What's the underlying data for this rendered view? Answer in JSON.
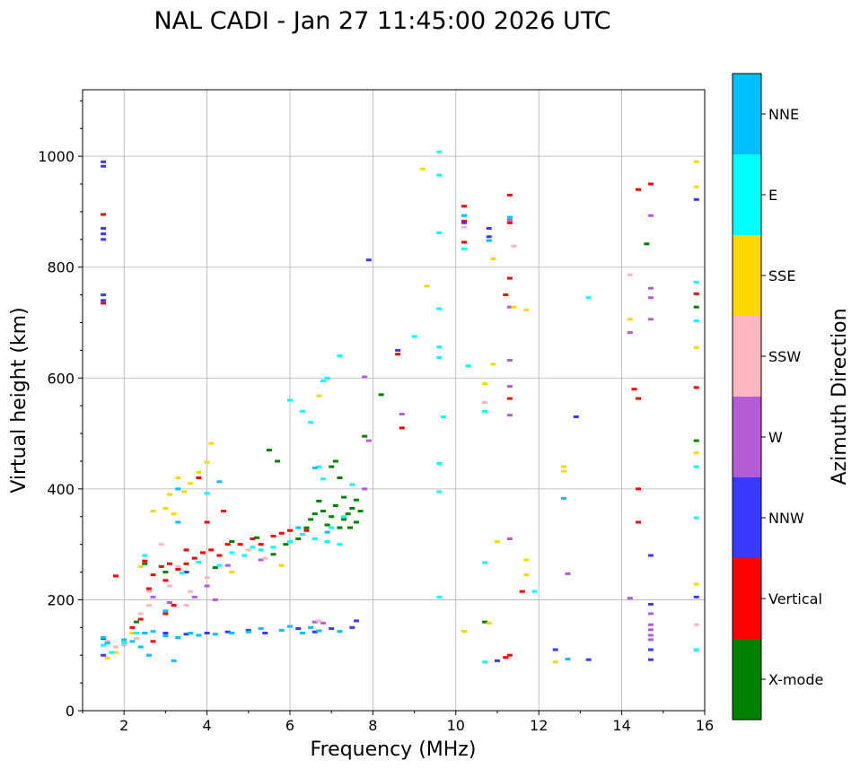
{
  "chart_data": {
    "type": "scatter",
    "title": "NAL CADI - Jan 27 11:45:00 2026 UTC",
    "xlabel": "Frequency (MHz)",
    "ylabel": "Virtual height (km)",
    "xlim": [
      1,
      16
    ],
    "ylim": [
      0,
      1120
    ],
    "xticks": [
      2,
      4,
      6,
      8,
      10,
      12,
      14,
      16
    ],
    "xtick_labels": [
      "2",
      "4",
      "6",
      "8",
      "10",
      "12",
      "14",
      "16"
    ],
    "yticks": [
      0,
      200,
      400,
      600,
      800,
      1000
    ],
    "ytick_labels": [
      "0",
      "200",
      "400",
      "600",
      "800",
      "1000"
    ],
    "grid": true,
    "colorbar": {
      "title": "Azimuth Direction",
      "categories": [
        {
          "label": "X-mode",
          "color": "#008000"
        },
        {
          "label": "Vertical",
          "color": "#ff0000"
        },
        {
          "label": "NNW",
          "color": "#3a3aff"
        },
        {
          "label": "W",
          "color": "#b35cd6"
        },
        {
          "label": "SSW",
          "color": "#ffb6c1"
        },
        {
          "label": "SSE",
          "color": "#ffd700"
        },
        {
          "label": "E",
          "color": "#00ffff"
        },
        {
          "label": "NNE",
          "color": "#00bfff"
        }
      ]
    },
    "series": [
      {
        "name": "X-mode",
        "points": [
          [
            2.3,
            160
          ],
          [
            2.5,
            265
          ],
          [
            3.0,
            250
          ],
          [
            4.2,
            258
          ],
          [
            4.6,
            305
          ],
          [
            5.2,
            312
          ],
          [
            5.6,
            282
          ],
          [
            5.9,
            300
          ],
          [
            6.2,
            310
          ],
          [
            6.4,
            330
          ],
          [
            6.5,
            345
          ],
          [
            6.6,
            355
          ],
          [
            6.8,
            360
          ],
          [
            6.9,
            335
          ],
          [
            7.0,
            350
          ],
          [
            7.1,
            370
          ],
          [
            7.2,
            330
          ],
          [
            7.3,
            345
          ],
          [
            7.4,
            355
          ],
          [
            7.5,
            365
          ],
          [
            7.6,
            380
          ],
          [
            7.7,
            360
          ],
          [
            7.0,
            440
          ],
          [
            7.1,
            450
          ],
          [
            7.2,
            420
          ],
          [
            5.7,
            450
          ],
          [
            5.5,
            470
          ],
          [
            7.8,
            495
          ],
          [
            8.2,
            570
          ],
          [
            10.7,
            160
          ],
          [
            14.6,
            842
          ],
          [
            15.8,
            728
          ],
          [
            15.8,
            487
          ],
          [
            6.7,
            378
          ],
          [
            7.3,
            385
          ],
          [
            7.6,
            340
          ],
          [
            7.45,
            330
          ]
        ]
      },
      {
        "name": "Vertical",
        "points": [
          [
            1.5,
            735
          ],
          [
            1.5,
            895
          ],
          [
            1.8,
            243
          ],
          [
            2.2,
            150
          ],
          [
            2.4,
            165
          ],
          [
            2.5,
            270
          ],
          [
            2.7,
            245
          ],
          [
            2.9,
            260
          ],
          [
            3.0,
            235
          ],
          [
            3.1,
            265
          ],
          [
            3.3,
            255
          ],
          [
            3.5,
            265
          ],
          [
            3.7,
            275
          ],
          [
            3.9,
            285
          ],
          [
            4.1,
            290
          ],
          [
            4.3,
            280
          ],
          [
            4.5,
            300
          ],
          [
            4.8,
            300
          ],
          [
            5.1,
            310
          ],
          [
            5.3,
            300
          ],
          [
            5.6,
            315
          ],
          [
            5.8,
            320
          ],
          [
            6.0,
            325
          ],
          [
            6.4,
            325
          ],
          [
            3.2,
            190
          ],
          [
            2.7,
            125
          ],
          [
            3.0,
            175
          ],
          [
            3.5,
            290
          ],
          [
            4.0,
            340
          ],
          [
            4.4,
            360
          ],
          [
            2.6,
            220
          ],
          [
            3.8,
            420
          ],
          [
            8.7,
            510
          ],
          [
            8.6,
            643
          ],
          [
            10.2,
            910
          ],
          [
            10.2,
            845
          ],
          [
            10.2,
            883
          ],
          [
            11.2,
            750
          ],
          [
            11.3,
            780
          ],
          [
            11.3,
            880
          ],
          [
            11.3,
            930
          ],
          [
            11.3,
            563
          ],
          [
            11.6,
            215
          ],
          [
            11.3,
            100
          ],
          [
            11.2,
            96
          ],
          [
            14.3,
            580
          ],
          [
            14.4,
            940
          ],
          [
            14.7,
            950
          ],
          [
            14.4,
            563
          ],
          [
            14.4,
            400
          ],
          [
            14.4,
            340
          ],
          [
            15.8,
            752
          ],
          [
            15.8,
            583
          ]
        ]
      },
      {
        "name": "NNW",
        "points": [
          [
            1.5,
            990
          ],
          [
            1.5,
            982
          ],
          [
            1.5,
            870
          ],
          [
            1.5,
            860
          ],
          [
            1.5,
            850
          ],
          [
            1.5,
            750
          ],
          [
            1.5,
            740
          ],
          [
            1.5,
            130
          ],
          [
            1.5,
            100
          ],
          [
            2.5,
            140
          ],
          [
            3.0,
            140
          ],
          [
            3.5,
            138
          ],
          [
            4.0,
            140
          ],
          [
            4.5,
            142
          ],
          [
            5.0,
            145
          ],
          [
            5.4,
            140
          ],
          [
            6.2,
            148
          ],
          [
            6.6,
            142
          ],
          [
            7.0,
            148
          ],
          [
            7.5,
            150
          ],
          [
            7.6,
            162
          ],
          [
            7.9,
            813
          ],
          [
            3.5,
            250
          ],
          [
            8.6,
            650
          ],
          [
            10.2,
            880
          ],
          [
            10.8,
            870
          ],
          [
            10.8,
            855
          ],
          [
            11.0,
            90
          ],
          [
            12.4,
            110
          ],
          [
            12.9,
            530
          ],
          [
            13.2,
            92
          ],
          [
            14.7,
            280
          ],
          [
            14.7,
            192
          ],
          [
            14.7,
            110
          ],
          [
            14.7,
            92
          ],
          [
            15.8,
            922
          ],
          [
            15.8,
            205
          ]
        ]
      },
      {
        "name": "W",
        "points": [
          [
            2.7,
            205
          ],
          [
            3.1,
            195
          ],
          [
            3.7,
            205
          ],
          [
            4.0,
            225
          ],
          [
            4.2,
            200
          ],
          [
            4.5,
            262
          ],
          [
            5.3,
            272
          ],
          [
            6.6,
            160
          ],
          [
            6.8,
            158
          ],
          [
            7.8,
            602
          ],
          [
            7.9,
            487
          ],
          [
            8.7,
            535
          ],
          [
            11.3,
            310
          ],
          [
            11.3,
            632
          ],
          [
            11.3,
            533
          ],
          [
            11.3,
            585
          ],
          [
            11.3,
            728
          ],
          [
            11.3,
            885
          ],
          [
            12.7,
            247
          ],
          [
            14.2,
            682
          ],
          [
            14.2,
            203
          ],
          [
            14.7,
            893
          ],
          [
            14.7,
            762
          ],
          [
            14.7,
            745
          ],
          [
            14.7,
            706
          ],
          [
            14.7,
            175
          ],
          [
            14.7,
            155
          ],
          [
            14.7,
            146
          ],
          [
            14.7,
            136
          ],
          [
            14.7,
            128
          ],
          [
            7.8,
            400
          ]
        ]
      },
      {
        "name": "SSW",
        "points": [
          [
            1.6,
            125
          ],
          [
            1.8,
            115
          ],
          [
            2.0,
            118
          ],
          [
            2.4,
            175
          ],
          [
            2.6,
            215
          ],
          [
            2.9,
            300
          ],
          [
            2.6,
            190
          ],
          [
            3.1,
            225
          ],
          [
            3.5,
            190
          ],
          [
            3.6,
            215
          ],
          [
            4.0,
            240
          ],
          [
            5.0,
            290
          ],
          [
            5.4,
            275
          ],
          [
            6.7,
            162
          ],
          [
            10.2,
            143
          ],
          [
            10.2,
            872
          ],
          [
            10.7,
            556
          ],
          [
            11.4,
            838
          ],
          [
            14.2,
            786
          ],
          [
            15.8,
            155
          ],
          [
            15.8,
            108
          ],
          [
            2.3,
            130
          ],
          [
            3.3,
            260
          ]
        ]
      },
      {
        "name": "SSE",
        "points": [
          [
            1.6,
            95
          ],
          [
            1.8,
            105
          ],
          [
            2.0,
            125
          ],
          [
            2.2,
            140
          ],
          [
            2.4,
            260
          ],
          [
            2.7,
            360
          ],
          [
            3.0,
            365
          ],
          [
            3.1,
            390
          ],
          [
            3.2,
            355
          ],
          [
            3.3,
            420
          ],
          [
            3.6,
            410
          ],
          [
            3.8,
            430
          ],
          [
            4.0,
            448
          ],
          [
            4.1,
            482
          ],
          [
            4.6,
            250
          ],
          [
            5.8,
            262
          ],
          [
            6.7,
            568
          ],
          [
            9.2,
            977
          ],
          [
            9.3,
            766
          ],
          [
            10.2,
            143
          ],
          [
            10.7,
            590
          ],
          [
            10.8,
            158
          ],
          [
            10.9,
            625
          ],
          [
            10.9,
            815
          ],
          [
            11.0,
            305
          ],
          [
            11.4,
            728
          ],
          [
            11.7,
            723
          ],
          [
            11.7,
            272
          ],
          [
            11.7,
            245
          ],
          [
            12.4,
            88
          ],
          [
            12.6,
            440
          ],
          [
            12.6,
            432
          ],
          [
            12.7,
            93
          ],
          [
            14.2,
            706
          ],
          [
            15.8,
            990
          ],
          [
            15.8,
            945
          ],
          [
            15.8,
            655
          ],
          [
            15.8,
            465
          ],
          [
            15.8,
            228
          ],
          [
            3.45,
            395
          ]
        ]
      },
      {
        "name": "E",
        "points": [
          [
            1.5,
            118
          ],
          [
            1.7,
            105
          ],
          [
            2.0,
            122
          ],
          [
            2.3,
            140
          ],
          [
            2.5,
            280
          ],
          [
            3.4,
            248
          ],
          [
            3.8,
            268
          ],
          [
            4.0,
            392
          ],
          [
            4.3,
            262
          ],
          [
            4.6,
            285
          ],
          [
            4.9,
            280
          ],
          [
            5.1,
            295
          ],
          [
            5.3,
            290
          ],
          [
            5.6,
            295
          ],
          [
            6.0,
            305
          ],
          [
            6.3,
            318
          ],
          [
            6.6,
            310
          ],
          [
            6.9,
            305
          ],
          [
            7.2,
            300
          ],
          [
            7.0,
            330
          ],
          [
            7.3,
            350
          ],
          [
            6.8,
            418
          ],
          [
            6.7,
            440
          ],
          [
            6.0,
            560
          ],
          [
            6.3,
            540
          ],
          [
            6.5,
            520
          ],
          [
            6.8,
            595
          ],
          [
            6.9,
            600
          ],
          [
            7.2,
            640
          ],
          [
            7.5,
            408
          ],
          [
            9.0,
            675
          ],
          [
            9.6,
            966
          ],
          [
            9.6,
            862
          ],
          [
            9.6,
            1008
          ],
          [
            9.6,
            725
          ],
          [
            9.6,
            656
          ],
          [
            9.6,
            637
          ],
          [
            9.7,
            530
          ],
          [
            9.6,
            446
          ],
          [
            9.6,
            395
          ],
          [
            9.6,
            205
          ],
          [
            10.3,
            622
          ],
          [
            10.2,
            833
          ],
          [
            10.7,
            540
          ],
          [
            10.7,
            267
          ],
          [
            10.7,
            88
          ],
          [
            11.9,
            215
          ],
          [
            13.2,
            745
          ],
          [
            15.8,
            773
          ],
          [
            15.8,
            703
          ],
          [
            15.8,
            440
          ],
          [
            15.8,
            348
          ],
          [
            15.8,
            110
          ]
        ]
      },
      {
        "name": "NNE",
        "points": [
          [
            1.5,
            132
          ],
          [
            1.6,
            122
          ],
          [
            2.0,
            128
          ],
          [
            2.2,
            125
          ],
          [
            2.4,
            115
          ],
          [
            2.5,
            140
          ],
          [
            2.7,
            143
          ],
          [
            3.0,
            135
          ],
          [
            3.3,
            132
          ],
          [
            3.6,
            140
          ],
          [
            3.8,
            136
          ],
          [
            4.2,
            138
          ],
          [
            4.6,
            140
          ],
          [
            5.0,
            142
          ],
          [
            5.3,
            148
          ],
          [
            5.8,
            145
          ],
          [
            6.0,
            152
          ],
          [
            6.3,
            140
          ],
          [
            6.5,
            150
          ],
          [
            6.7,
            144
          ],
          [
            7.2,
            143
          ],
          [
            2.6,
            100
          ],
          [
            3.2,
            90
          ],
          [
            3.0,
            180
          ],
          [
            3.3,
            400
          ],
          [
            3.3,
            340
          ],
          [
            4.3,
            413
          ],
          [
            6.6,
            438
          ],
          [
            6.2,
            330
          ],
          [
            6.9,
            322
          ],
          [
            10.2,
            893
          ],
          [
            10.8,
            848
          ],
          [
            11.3,
            890
          ],
          [
            12.6,
            383
          ],
          [
            12.7,
            93
          ]
        ]
      }
    ]
  }
}
